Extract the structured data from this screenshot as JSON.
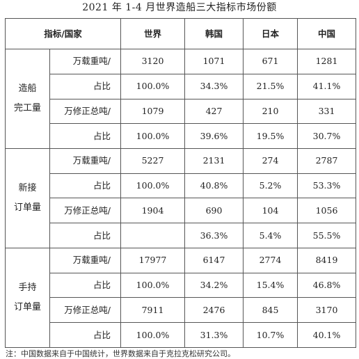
{
  "title": "2021 年 1-4 月世界造船三大指标市场份额",
  "header": {
    "metric_country": "指标/国家",
    "world": "世界",
    "korea": "韩国",
    "japan": "日本",
    "china": "中国"
  },
  "groups": [
    {
      "name_line1": "造船",
      "name_line2": "完工量",
      "rows": [
        {
          "unit": "万载重吨/",
          "world": "3120",
          "korea": "1071",
          "japan": "671",
          "china": "1281"
        },
        {
          "unit": "占比",
          "world": "100.0%",
          "korea": "34.3%",
          "japan": "21.5%",
          "china": "41.1%"
        },
        {
          "unit": "万修正总吨/",
          "world": "1079",
          "korea": "427",
          "japan": "210",
          "china": "331"
        },
        {
          "unit": "占比",
          "world": "100.0%",
          "korea": "39.6%",
          "japan": "19.5%",
          "china": "30.7%"
        }
      ]
    },
    {
      "name_line1": "新接",
      "name_line2": "订单量",
      "rows": [
        {
          "unit": "万载重吨/",
          "world": "5227",
          "korea": "2131",
          "japan": "274",
          "china": "2787"
        },
        {
          "unit": "占比",
          "world": "100.0%",
          "korea": "40.8%",
          "japan": "5.2%",
          "china": "53.3%"
        },
        {
          "unit": "万修正总吨/",
          "world": "1904",
          "korea": "690",
          "japan": "104",
          "china": "1056"
        },
        {
          "unit": "占比",
          "world": "",
          "korea": "36.3%",
          "japan": "5.4%",
          "china": "55.5%"
        }
      ]
    },
    {
      "name_line1": "手持",
      "name_line2": "订单量",
      "rows": [
        {
          "unit": "万载重吨/",
          "world": "17977",
          "korea": "6147",
          "japan": "2774",
          "china": "8419"
        },
        {
          "unit": "占比",
          "world": "100.0%",
          "korea": "34.2%",
          "japan": "15.4%",
          "china": "46.8%"
        },
        {
          "unit": "万修正总吨/",
          "world": "7911",
          "korea": "2476",
          "japan": "845",
          "china": "3170"
        },
        {
          "unit": "占比",
          "world": "100.0%",
          "korea": "31.3%",
          "japan": "10.7%",
          "china": "40.1%"
        }
      ]
    }
  ],
  "note": "注：中国数据来自于中国统计，世界数据来自于克拉克松研究公司。"
}
